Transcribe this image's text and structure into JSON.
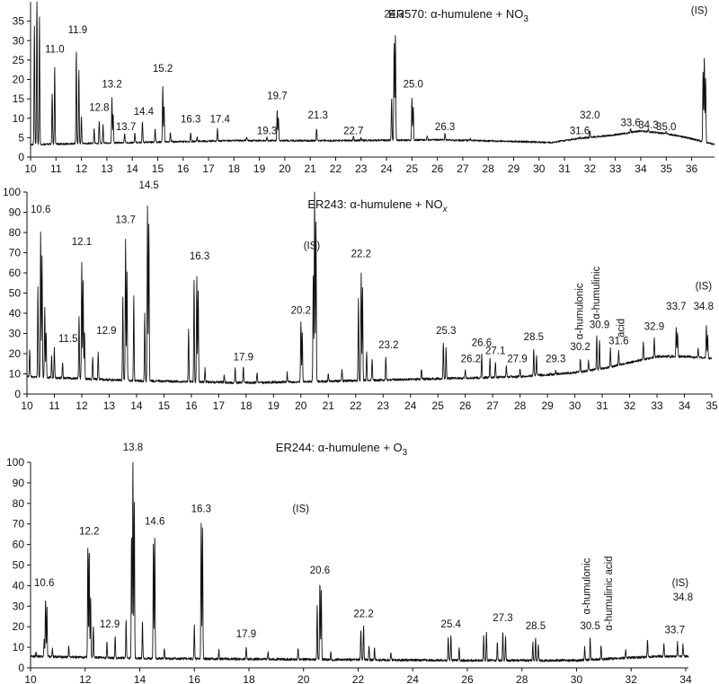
{
  "chart_data": [
    {
      "type": "line",
      "title": "ER570: α-humulene + NO3",
      "title_parts": [
        "ER570: α-humulene + NO",
        "3"
      ],
      "xlim": [
        10,
        36.9
      ],
      "ylim": [
        0,
        40
      ],
      "x_ticks": [
        10,
        11,
        12,
        13,
        14,
        15,
        16,
        17,
        18,
        19,
        20,
        21,
        22,
        23,
        24,
        25,
        26,
        27,
        28,
        29,
        30,
        31,
        32,
        33,
        34,
        35,
        36
      ],
      "y_ticks": [
        0,
        5,
        10,
        15,
        20,
        25,
        30,
        35
      ],
      "baseline": [
        [
          10,
          3
        ],
        [
          14,
          3.5
        ],
        [
          18,
          4
        ],
        [
          22,
          4
        ],
        [
          26,
          4.2
        ],
        [
          29,
          3.8
        ],
        [
          30.5,
          3.5
        ],
        [
          31.5,
          4.5
        ],
        [
          33,
          5.5
        ],
        [
          34,
          6.5
        ],
        [
          35,
          5.8
        ],
        [
          36,
          4.5
        ],
        [
          36.9,
          3
        ]
      ],
      "peaks": [
        [
          10.15,
          34
        ],
        [
          10.25,
          40
        ],
        [
          10.35,
          36
        ],
        [
          10.85,
          16
        ],
        [
          10.95,
          23
        ],
        [
          11.8,
          27
        ],
        [
          11.9,
          22
        ],
        [
          12.0,
          10
        ],
        [
          12.5,
          7
        ],
        [
          12.7,
          9
        ],
        [
          12.85,
          8
        ],
        [
          13.2,
          15
        ],
        [
          13.25,
          11
        ],
        [
          13.7,
          6
        ],
        [
          14.1,
          6
        ],
        [
          14.4,
          9
        ],
        [
          14.9,
          7
        ],
        [
          15.2,
          18
        ],
        [
          15.25,
          13
        ],
        [
          15.5,
          6
        ],
        [
          16.3,
          6
        ],
        [
          16.55,
          5
        ],
        [
          17.35,
          7
        ],
        [
          18.5,
          5
        ],
        [
          19.3,
          5
        ],
        [
          19.7,
          12
        ],
        [
          19.75,
          10
        ],
        [
          21.25,
          7
        ],
        [
          22.7,
          5
        ],
        [
          23.0,
          4.8
        ],
        [
          24.2,
          15
        ],
        [
          24.3,
          29
        ],
        [
          24.35,
          32
        ],
        [
          25.0,
          15
        ],
        [
          25.05,
          13
        ],
        [
          25.6,
          5
        ],
        [
          26.3,
          6
        ],
        [
          27.3,
          4.5
        ],
        [
          31.6,
          5
        ],
        [
          32.0,
          6.5
        ],
        [
          33.6,
          7
        ],
        [
          34.3,
          7
        ],
        [
          35.0,
          6.5
        ],
        [
          36.45,
          22
        ],
        [
          36.5,
          26
        ],
        [
          36.55,
          20
        ]
      ],
      "peak_labels": [
        {
          "text": "11.0",
          "x": 10.95,
          "y": 26
        },
        {
          "text": "11.9",
          "x": 11.85,
          "y": 31
        },
        {
          "text": "12.8",
          "x": 12.7,
          "y": 11
        },
        {
          "text": "13.2",
          "x": 13.2,
          "y": 17
        },
        {
          "text": "13.7",
          "x": 13.75,
          "y": 6
        },
        {
          "text": "14.4",
          "x": 14.45,
          "y": 10
        },
        {
          "text": "15.2",
          "x": 15.2,
          "y": 21
        },
        {
          "text": "16.3",
          "x": 16.3,
          "y": 8
        },
        {
          "text": "17.4",
          "x": 17.45,
          "y": 8
        },
        {
          "text": "19.3",
          "x": 19.3,
          "y": 5
        },
        {
          "text": "19.7",
          "x": 19.7,
          "y": 14
        },
        {
          "text": "21.3",
          "x": 21.3,
          "y": 9
        },
        {
          "text": "22.7",
          "x": 22.7,
          "y": 5
        },
        {
          "text": "24.3",
          "x": 24.3,
          "y": 35
        },
        {
          "text": "25.0",
          "x": 25.05,
          "y": 17
        },
        {
          "text": "26.3",
          "x": 26.3,
          "y": 6
        },
        {
          "text": "31.6",
          "x": 31.6,
          "y": 5
        },
        {
          "text": "32.0",
          "x": 32.0,
          "y": 9
        },
        {
          "text": "33.6",
          "x": 33.6,
          "y": 7
        },
        {
          "text": "34.3",
          "x": 34.3,
          "y": 6.5
        },
        {
          "text": "35.0",
          "x": 35.0,
          "y": 6
        },
        {
          "text": "(IS)",
          "x": 24.3,
          "y": 42
        },
        {
          "text": "(IS)",
          "x": 36.3,
          "y": 36
        }
      ]
    },
    {
      "type": "line",
      "title": "ER243: α-humulene + NOx",
      "title_parts": [
        "ER243: α-humulene + NO",
        "x"
      ],
      "xlim": [
        10,
        35
      ],
      "ylim": [
        0,
        100
      ],
      "x_ticks": [
        10,
        11,
        12,
        13,
        14,
        15,
        16,
        17,
        18,
        19,
        20,
        21,
        22,
        23,
        24,
        25,
        26,
        27,
        28,
        29,
        30,
        31,
        32,
        33,
        34,
        35
      ],
      "y_ticks": [
        0,
        10,
        20,
        30,
        40,
        50,
        60,
        70,
        80,
        90,
        100
      ],
      "baseline": [
        [
          10,
          8
        ],
        [
          14,
          6
        ],
        [
          18,
          5
        ],
        [
          22,
          6
        ],
        [
          25,
          7
        ],
        [
          28,
          8
        ],
        [
          30,
          10
        ],
        [
          31,
          12
        ],
        [
          32,
          15
        ],
        [
          33,
          18
        ],
        [
          34,
          18
        ],
        [
          35,
          17
        ]
      ],
      "peaks": [
        [
          10.1,
          21
        ],
        [
          10.4,
          52
        ],
        [
          10.5,
          80
        ],
        [
          10.55,
          68
        ],
        [
          10.65,
          42
        ],
        [
          10.7,
          30
        ],
        [
          10.9,
          18
        ],
        [
          11.0,
          22
        ],
        [
          11.3,
          15
        ],
        [
          11.9,
          38
        ],
        [
          12.0,
          65
        ],
        [
          12.05,
          55
        ],
        [
          12.1,
          30
        ],
        [
          12.4,
          17
        ],
        [
          12.6,
          20
        ],
        [
          13.5,
          47
        ],
        [
          13.6,
          76
        ],
        [
          13.65,
          60
        ],
        [
          13.9,
          48
        ],
        [
          14.3,
          40
        ],
        [
          14.4,
          93
        ],
        [
          14.45,
          84
        ],
        [
          15.9,
          31
        ],
        [
          16.1,
          56
        ],
        [
          16.2,
          58
        ],
        [
          16.25,
          50
        ],
        [
          16.5,
          12
        ],
        [
          17.2,
          9
        ],
        [
          17.6,
          12
        ],
        [
          17.9,
          13
        ],
        [
          18.4,
          10
        ],
        [
          19.5,
          10
        ],
        [
          20.0,
          35
        ],
        [
          20.05,
          30
        ],
        [
          20.45,
          58
        ],
        [
          20.5,
          100
        ],
        [
          20.55,
          85
        ],
        [
          21.0,
          10
        ],
        [
          21.5,
          12
        ],
        [
          22.1,
          47
        ],
        [
          22.2,
          59
        ],
        [
          22.25,
          52
        ],
        [
          22.4,
          20
        ],
        [
          22.6,
          17
        ],
        [
          23.1,
          18
        ],
        [
          24.4,
          12
        ],
        [
          25.2,
          25
        ],
        [
          25.3,
          22
        ],
        [
          26.0,
          11
        ],
        [
          26.6,
          19
        ],
        [
          26.9,
          17
        ],
        [
          27.1,
          15
        ],
        [
          27.5,
          13
        ],
        [
          28.0,
          12
        ],
        [
          28.5,
          22
        ],
        [
          28.6,
          18
        ],
        [
          29.3,
          11
        ],
        [
          30.2,
          17
        ],
        [
          30.5,
          16
        ],
        [
          30.8,
          28
        ],
        [
          30.9,
          26
        ],
        [
          31.3,
          22
        ],
        [
          31.6,
          21
        ],
        [
          32.5,
          25
        ],
        [
          32.9,
          27
        ],
        [
          33.7,
          32
        ],
        [
          33.75,
          30
        ],
        [
          34.5,
          22
        ],
        [
          34.8,
          33
        ],
        [
          34.85,
          28
        ]
      ],
      "peak_labels": [
        {
          "text": "10.6",
          "x": 10.5,
          "y": 88
        },
        {
          "text": "11.5",
          "x": 11.5,
          "y": 24
        },
        {
          "text": "12.1",
          "x": 12.0,
          "y": 72
        },
        {
          "text": "12.9",
          "x": 12.9,
          "y": 28
        },
        {
          "text": "13.7",
          "x": 13.6,
          "y": 83
        },
        {
          "text": "14.5",
          "x": 14.45,
          "y": 100
        },
        {
          "text": "16.3",
          "x": 16.3,
          "y": 65
        },
        {
          "text": "17.9",
          "x": 17.9,
          "y": 15
        },
        {
          "text": "20.2",
          "x": 20.0,
          "y": 38
        },
        {
          "text": "22.2",
          "x": 22.2,
          "y": 66
        },
        {
          "text": "23.2",
          "x": 23.2,
          "y": 21
        },
        {
          "text": "25.3",
          "x": 25.3,
          "y": 28
        },
        {
          "text": "26.2",
          "x": 26.2,
          "y": 14
        },
        {
          "text": "26.6",
          "x": 26.6,
          "y": 22
        },
        {
          "text": "27.1",
          "x": 27.1,
          "y": 18
        },
        {
          "text": "27.9",
          "x": 27.9,
          "y": 14
        },
        {
          "text": "28.5",
          "x": 28.5,
          "y": 25
        },
        {
          "text": "29.3",
          "x": 29.3,
          "y": 14
        },
        {
          "text": "30.2",
          "x": 30.2,
          "y": 20
        },
        {
          "text": "30.9",
          "x": 30.9,
          "y": 31
        },
        {
          "text": "31.6",
          "x": 31.6,
          "y": 23
        },
        {
          "text": "32.9",
          "x": 32.9,
          "y": 30
        },
        {
          "text": "33.7",
          "x": 33.7,
          "y": 40
        },
        {
          "text": "34.8",
          "x": 34.7,
          "y": 40
        },
        {
          "text": "(IS)",
          "x": 20.4,
          "y": 70
        },
        {
          "text": "(IS)",
          "x": 34.7,
          "y": 50
        }
      ],
      "vertical_labels": [
        {
          "text": "α-humulonic",
          "x": 30.3,
          "y": 27
        },
        {
          "text": "α-humulinic",
          "x": 30.9,
          "y": 37
        },
        {
          "text": "acid",
          "x": 31.8,
          "y": 28
        }
      ]
    },
    {
      "type": "line",
      "title": "ER244: α-humulene + O3",
      "title_parts": [
        "ER244: α-humulene + O",
        "3"
      ],
      "xlim": [
        10,
        34.1
      ],
      "ylim": [
        0,
        100
      ],
      "x_ticks": [
        10,
        12,
        14,
        16,
        18,
        20,
        22,
        24,
        26,
        28,
        30,
        32,
        34
      ],
      "y_ticks": [
        0,
        10,
        20,
        30,
        40,
        50,
        60,
        70,
        80,
        90,
        100
      ],
      "baseline": [
        [
          10,
          5
        ],
        [
          14,
          4
        ],
        [
          20,
          3.5
        ],
        [
          26,
          3
        ],
        [
          30,
          3
        ],
        [
          33,
          5
        ],
        [
          34,
          5
        ]
      ],
      "peaks": [
        [
          10.2,
          7
        ],
        [
          10.5,
          13
        ],
        [
          10.55,
          33
        ],
        [
          10.6,
          29
        ],
        [
          10.8,
          9
        ],
        [
          11.4,
          10
        ],
        [
          12.1,
          60
        ],
        [
          12.15,
          56
        ],
        [
          12.2,
          34
        ],
        [
          12.3,
          20
        ],
        [
          12.8,
          12
        ],
        [
          13.1,
          15
        ],
        [
          13.5,
          23
        ],
        [
          13.7,
          65
        ],
        [
          13.75,
          100
        ],
        [
          13.8,
          80
        ],
        [
          14.1,
          22
        ],
        [
          14.5,
          60
        ],
        [
          14.55,
          65
        ],
        [
          14.9,
          9
        ],
        [
          16.0,
          20
        ],
        [
          16.25,
          70
        ],
        [
          16.3,
          68
        ],
        [
          16.9,
          8
        ],
        [
          17.9,
          10
        ],
        [
          18.7,
          7
        ],
        [
          19.8,
          9
        ],
        [
          20.5,
          30
        ],
        [
          20.6,
          41
        ],
        [
          20.65,
          38
        ],
        [
          21.0,
          7
        ],
        [
          22.1,
          18
        ],
        [
          22.2,
          20
        ],
        [
          22.4,
          10
        ],
        [
          22.6,
          9
        ],
        [
          23.2,
          7
        ],
        [
          25.3,
          14
        ],
        [
          25.4,
          15
        ],
        [
          25.7,
          9
        ],
        [
          26.6,
          15
        ],
        [
          26.7,
          17
        ],
        [
          27.1,
          12
        ],
        [
          27.3,
          17
        ],
        [
          27.4,
          15
        ],
        [
          28.4,
          12
        ],
        [
          28.5,
          14
        ],
        [
          28.6,
          11
        ],
        [
          30.3,
          10
        ],
        [
          30.5,
          14
        ],
        [
          30.9,
          10
        ],
        [
          31.8,
          8
        ],
        [
          32.6,
          13
        ],
        [
          33.2,
          11
        ],
        [
          33.7,
          12
        ],
        [
          33.9,
          11
        ]
      ],
      "peak_labels": [
        {
          "text": "10.6",
          "x": 10.5,
          "y": 38
        },
        {
          "text": "12.2",
          "x": 12.15,
          "y": 63
        },
        {
          "text": "12.9",
          "x": 12.9,
          "y": 18
        },
        {
          "text": "13.8",
          "x": 13.75,
          "y": 104
        },
        {
          "text": "14.6",
          "x": 14.55,
          "y": 68
        },
        {
          "text": "16.3",
          "x": 16.25,
          "y": 74
        },
        {
          "text": "17.9",
          "x": 17.9,
          "y": 13
        },
        {
          "text": "20.6",
          "x": 20.6,
          "y": 44
        },
        {
          "text": "22.2",
          "x": 22.2,
          "y": 23
        },
        {
          "text": "25.4",
          "x": 25.4,
          "y": 18
        },
        {
          "text": "27.3",
          "x": 27.3,
          "y": 21
        },
        {
          "text": "28.5",
          "x": 28.5,
          "y": 17
        },
        {
          "text": "30.5",
          "x": 30.5,
          "y": 17
        },
        {
          "text": "33.7",
          "x": 33.6,
          "y": 15
        },
        {
          "text": "34.8",
          "x": 33.9,
          "y": 31
        },
        {
          "text": "(IS)",
          "x": 19.9,
          "y": 74
        },
        {
          "text": "(IS)",
          "x": 33.8,
          "y": 38
        }
      ],
      "vertical_labels": [
        {
          "text": "α-humulonic",
          "x": 30.5,
          "y": 26
        },
        {
          "text": "α-humulinic acid",
          "x": 31.3,
          "y": 18
        }
      ]
    }
  ]
}
